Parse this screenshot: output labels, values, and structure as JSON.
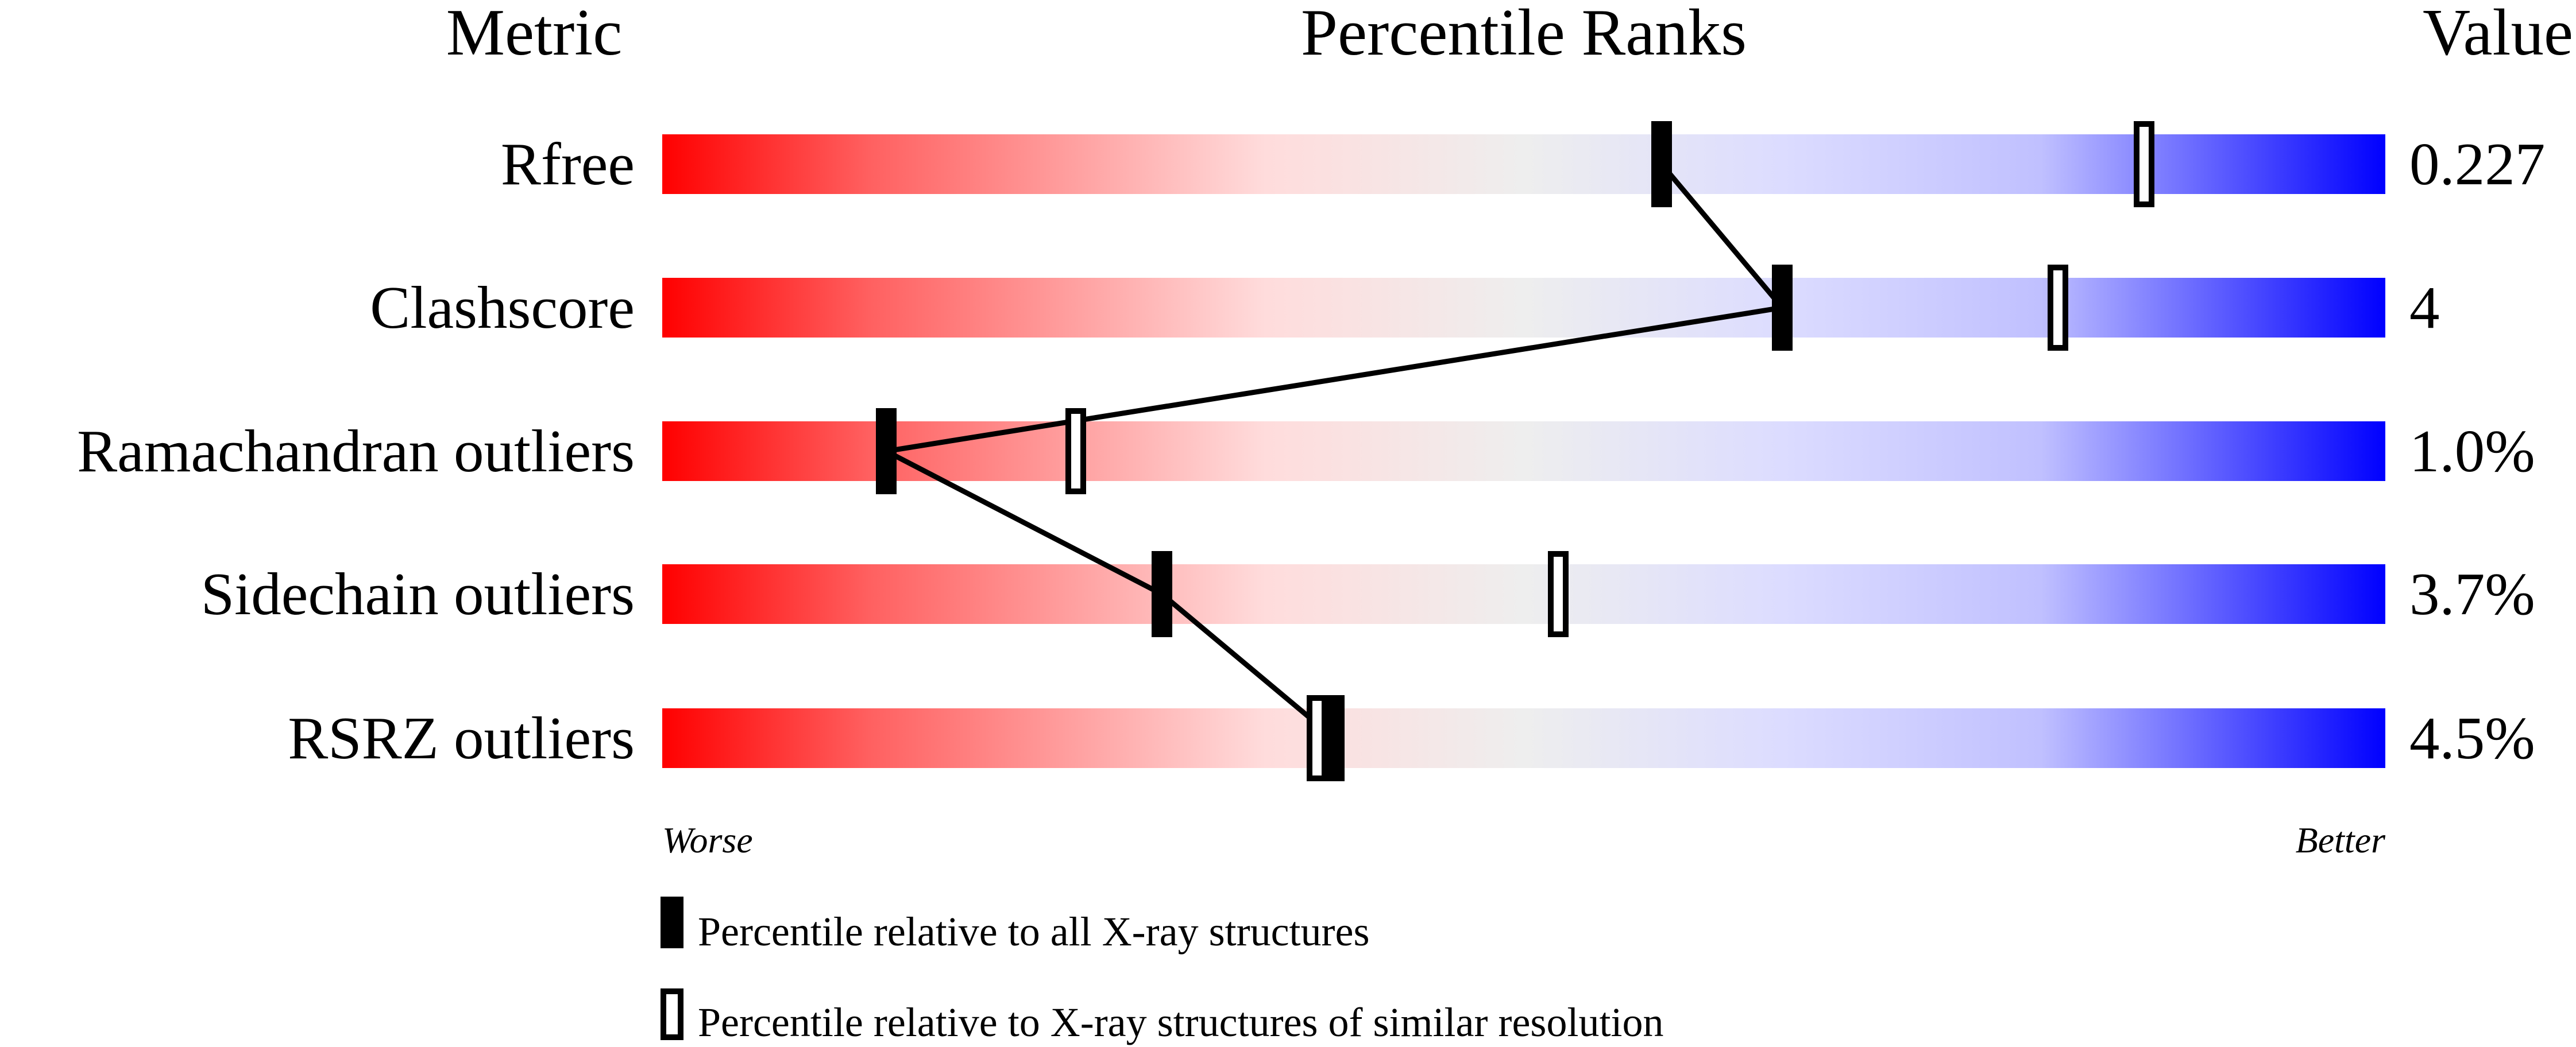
{
  "chart_data": {
    "type": "bar",
    "header": {
      "metric": "Metric",
      "title": "Percentile Ranks",
      "value": "Value"
    },
    "rows": [
      {
        "metric": "Rfree",
        "value": "0.227",
        "percentile_all": 58,
        "percentile_similar": 86
      },
      {
        "metric": "Clashscore",
        "value": "4",
        "percentile_all": 65,
        "percentile_similar": 81
      },
      {
        "metric": "Ramachandran outliers",
        "value": "1.0%",
        "percentile_all": 13,
        "percentile_similar": 24
      },
      {
        "metric": "Sidechain outliers",
        "value": "3.7%",
        "percentile_all": 29,
        "percentile_similar": 52
      },
      {
        "metric": "RSRZ outliers",
        "value": "4.5%",
        "percentile_all": 39,
        "percentile_similar": 38
      }
    ],
    "xlim": [
      0,
      100
    ],
    "axis": {
      "worse": "Worse",
      "better": "Better"
    },
    "legend": {
      "all": "Percentile relative to all X-ray structures",
      "similar": "Percentile relative to X-ray structures of similar resolution"
    },
    "colors": {
      "worse": "#ff0000",
      "middle": "#eeeeee",
      "better": "#0000ff",
      "marker": "#000000"
    }
  }
}
